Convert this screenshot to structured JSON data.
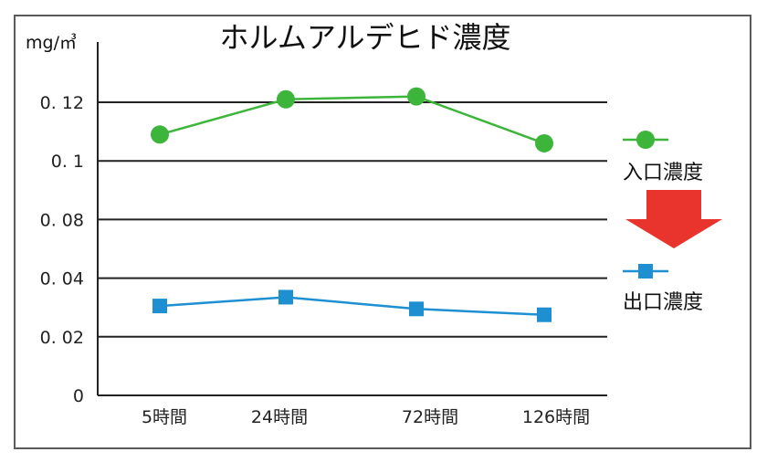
{
  "chart_data": {
    "type": "line",
    "title": "ホルムアルデヒド濃度",
    "ylabel": "mg/㎥",
    "xlabel": "",
    "categories": [
      "5時間",
      "24時間",
      "72時間",
      "126時間"
    ],
    "x_positions": [
      5,
      24,
      72,
      126
    ],
    "y_ticks": [
      0,
      0.02,
      0.04,
      0.08,
      0.1,
      0.12
    ],
    "y_tick_labels": [
      "0",
      "0. 02",
      "0. 04",
      "0. 08",
      "0. 1",
      "0. 12"
    ],
    "ylim": [
      0,
      0.12
    ],
    "grid": "horizontal",
    "legend_position": "right",
    "series": [
      {
        "name": "入口濃度",
        "marker": "circle",
        "color": "#3db53a",
        "values": [
          0.109,
          0.121,
          0.122,
          0.106
        ]
      },
      {
        "name": "出口濃度",
        "marker": "square",
        "color": "#1e90d2",
        "values": [
          0.0305,
          0.0335,
          0.0295,
          0.0275
        ]
      }
    ],
    "annotation": {
      "type": "arrow",
      "direction": "down",
      "color": "#e8342c"
    }
  }
}
